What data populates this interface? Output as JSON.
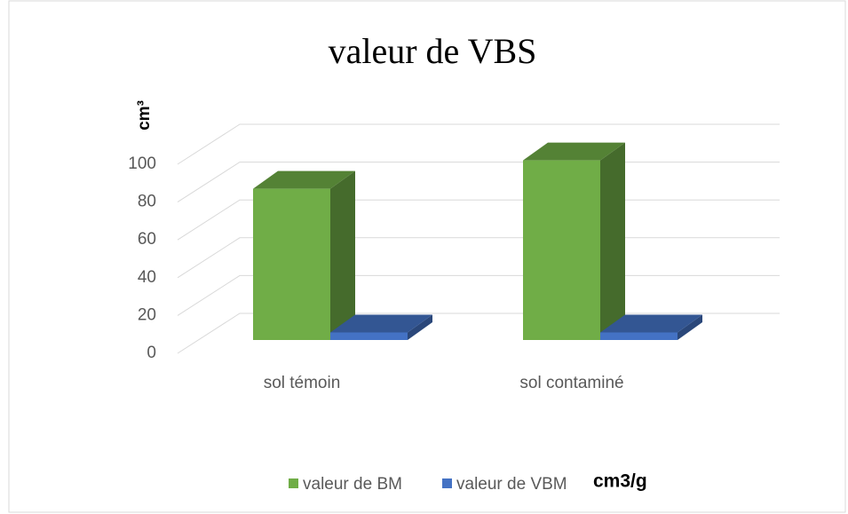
{
  "chart_data": {
    "type": "bar3d",
    "title": "valeur de VBS",
    "y_label": "cm³",
    "unit_label": "cm3/g",
    "categories": [
      "sol témoin",
      "sol contaminé"
    ],
    "series": [
      {
        "name": "valeur de BM",
        "color": "#70ad47",
        "values": [
          80,
          95
        ]
      },
      {
        "name": "valeur de VBM",
        "color": "#4472c4",
        "values": [
          4,
          4
        ]
      }
    ],
    "ylim": [
      0,
      100
    ],
    "yticks": [
      0,
      20,
      40,
      60,
      80,
      100
    ],
    "grid": true,
    "legend": "bottom"
  }
}
